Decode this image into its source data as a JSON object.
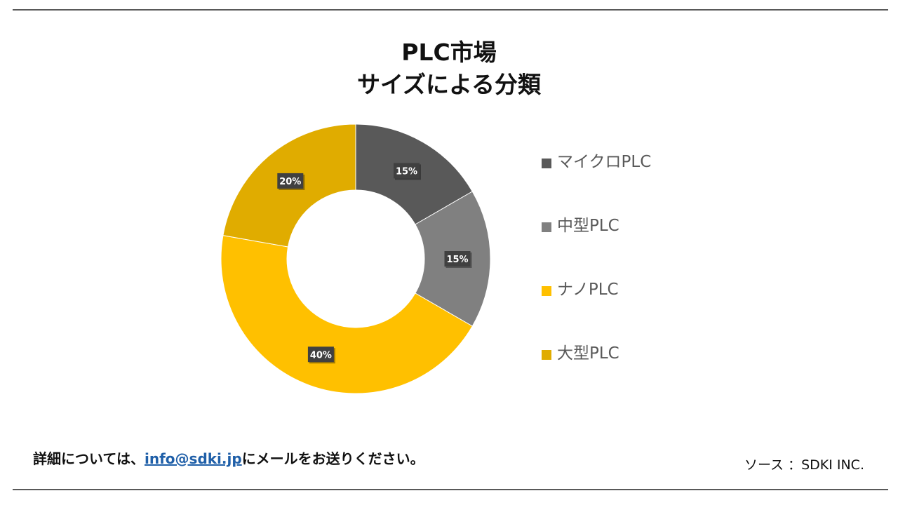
{
  "title": {
    "line1": "PLC市場",
    "line2": "サイズによる分類"
  },
  "chart_data": {
    "type": "pie",
    "variant": "donut",
    "title": "PLC市場 サイズによる分類",
    "categories": [
      "マイクロPLC",
      "中型PLC",
      "ナノPLC",
      "大型PLC"
    ],
    "values": [
      15,
      15,
      40,
      20
    ],
    "labels": [
      "15%",
      "15%",
      "40%",
      "20%"
    ],
    "colors": [
      "#595959",
      "#808080",
      "#FFC000",
      "#E0AC00"
    ],
    "legend_position": "right"
  },
  "footer": {
    "prefix": "詳細については、",
    "email": "info@sdki.jp",
    "suffix": "にメールをお送りください。",
    "source": "ソース ：SDKI INC."
  },
  "colors": {
    "rule": "#595959",
    "link": "#1f5fa8",
    "label_bg": "#404040"
  }
}
